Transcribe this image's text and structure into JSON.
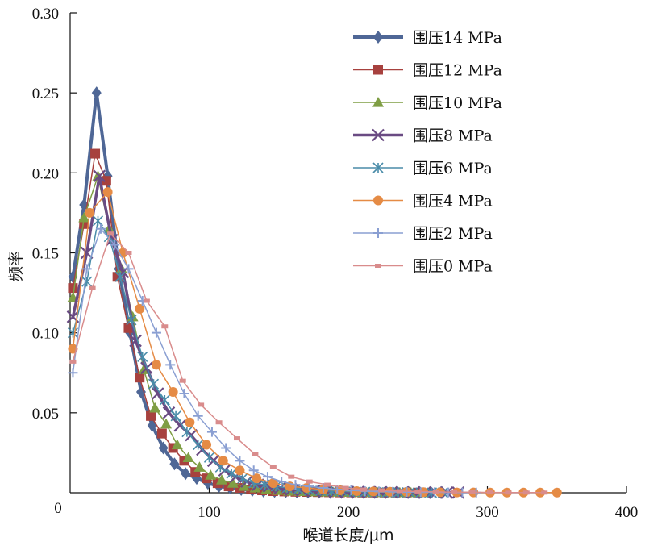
{
  "chart_data": {
    "type": "line",
    "title": "",
    "xlabel": "喉道长度/μm",
    "ylabel": "频率",
    "xlim": [
      0,
      400
    ],
    "ylim": [
      0,
      0.3
    ],
    "x_ticks": [
      100,
      200,
      300,
      400
    ],
    "x_tick_labels": [
      "100",
      "200",
      "300",
      "400"
    ],
    "y_ticks": [
      0.05,
      0.1,
      0.15,
      0.2,
      0.25,
      0.3
    ],
    "y_tick_labels": [
      "0.05",
      "0.10",
      "0.15",
      "0.20",
      "0.25",
      "0.30"
    ],
    "origin_label": "0",
    "grid": false,
    "legend_position": "top-right",
    "series": [
      {
        "name": "围压14 MPa",
        "color": "#4F6796",
        "marker": "diamond",
        "points": [
          [
            2,
            0.135
          ],
          [
            10,
            0.18
          ],
          [
            19,
            0.25
          ],
          [
            27,
            0.198
          ],
          [
            35,
            0.14
          ],
          [
            43,
            0.1
          ],
          [
            51,
            0.063
          ],
          [
            59,
            0.042
          ],
          [
            67,
            0.028
          ],
          [
            75,
            0.018
          ],
          [
            83,
            0.012
          ],
          [
            91,
            0.009
          ],
          [
            99,
            0.006
          ],
          [
            107,
            0.004
          ],
          [
            115,
            0.003
          ],
          [
            123,
            0.002
          ],
          [
            131,
            0.0015
          ],
          [
            139,
            0.001
          ],
          [
            147,
            0.0008
          ],
          [
            155,
            0.0006
          ],
          [
            163,
            0.0005
          ],
          [
            171,
            0.0004
          ],
          [
            179,
            0.0003
          ],
          [
            187,
            0.0002
          ],
          [
            195,
            0.0002
          ],
          [
            203,
            0.0001
          ],
          [
            211,
            0.0001
          ],
          [
            219,
            0.0001
          ],
          [
            227,
            0.0001
          ],
          [
            235,
            0.0001
          ],
          [
            243,
            0.0001
          ],
          [
            251,
            0.0001
          ],
          [
            259,
            0.0001
          ],
          [
            267,
            0.0001
          ]
        ]
      },
      {
        "name": "围压12 MPa",
        "color": "#A7413E",
        "marker": "square",
        "points": [
          [
            2,
            0.128
          ],
          [
            10,
            0.168
          ],
          [
            18,
            0.212
          ],
          [
            26,
            0.195
          ],
          [
            34,
            0.135
          ],
          [
            42,
            0.103
          ],
          [
            50,
            0.072
          ],
          [
            58,
            0.048
          ],
          [
            66,
            0.037
          ],
          [
            74,
            0.028
          ],
          [
            82,
            0.02
          ],
          [
            90,
            0.013
          ],
          [
            98,
            0.009
          ],
          [
            106,
            0.006
          ],
          [
            114,
            0.004
          ],
          [
            122,
            0.003
          ],
          [
            130,
            0.002
          ],
          [
            138,
            0.0015
          ],
          [
            146,
            0.001
          ],
          [
            154,
            0.0008
          ],
          [
            162,
            0.0006
          ],
          [
            170,
            0.0005
          ],
          [
            178,
            0.0004
          ],
          [
            186,
            0.0003
          ],
          [
            194,
            0.0002
          ],
          [
            202,
            0.0002
          ],
          [
            210,
            0.0001
          ],
          [
            218,
            0.0001
          ],
          [
            226,
            0.0001
          ],
          [
            234,
            0.0001
          ],
          [
            242,
            0.0001
          ],
          [
            250,
            0.0001
          ]
        ]
      },
      {
        "name": "围压10 MPa",
        "color": "#7F9E44",
        "marker": "triangle",
        "points": [
          [
            2,
            0.122
          ],
          [
            10,
            0.172
          ],
          [
            20,
            0.198
          ],
          [
            28,
            0.165
          ],
          [
            37,
            0.14
          ],
          [
            45,
            0.11
          ],
          [
            53,
            0.077
          ],
          [
            61,
            0.053
          ],
          [
            69,
            0.043
          ],
          [
            77,
            0.03
          ],
          [
            85,
            0.022
          ],
          [
            93,
            0.016
          ],
          [
            101,
            0.011
          ],
          [
            109,
            0.008
          ],
          [
            117,
            0.006
          ],
          [
            125,
            0.004
          ],
          [
            133,
            0.003
          ],
          [
            141,
            0.002
          ],
          [
            149,
            0.0015
          ],
          [
            157,
            0.001
          ],
          [
            165,
            0.0008
          ],
          [
            173,
            0.0006
          ],
          [
            181,
            0.0005
          ],
          [
            189,
            0.0004
          ],
          [
            197,
            0.0003
          ],
          [
            205,
            0.0002
          ],
          [
            213,
            0.0002
          ],
          [
            221,
            0.0001
          ],
          [
            229,
            0.0001
          ],
          [
            237,
            0.0001
          ],
          [
            245,
            0.0001
          ],
          [
            253,
            0.0001
          ]
        ]
      },
      {
        "name": "围压8 MPa",
        "color": "#6A4B83",
        "marker": "x",
        "points": [
          [
            2,
            0.11
          ],
          [
            12,
            0.15
          ],
          [
            21,
            0.198
          ],
          [
            30,
            0.158
          ],
          [
            38,
            0.138
          ],
          [
            47,
            0.095
          ],
          [
            55,
            0.078
          ],
          [
            63,
            0.062
          ],
          [
            71,
            0.05
          ],
          [
            79,
            0.042
          ],
          [
            87,
            0.036
          ],
          [
            95,
            0.027
          ],
          [
            103,
            0.02
          ],
          [
            111,
            0.014
          ],
          [
            119,
            0.01
          ],
          [
            127,
            0.007
          ],
          [
            135,
            0.005
          ],
          [
            143,
            0.004
          ],
          [
            151,
            0.003
          ],
          [
            159,
            0.002
          ],
          [
            167,
            0.0015
          ],
          [
            175,
            0.0012
          ],
          [
            183,
            0.001
          ],
          [
            191,
            0.0008
          ],
          [
            199,
            0.0006
          ],
          [
            207,
            0.0005
          ],
          [
            215,
            0.0004
          ],
          [
            223,
            0.0003
          ],
          [
            231,
            0.0003
          ],
          [
            239,
            0.0002
          ],
          [
            247,
            0.0002
          ],
          [
            255,
            0.0001
          ],
          [
            263,
            0.0001
          ],
          [
            271,
            0.0001
          ],
          [
            279,
            0.0001
          ]
        ]
      },
      {
        "name": "围压6 MPa",
        "color": "#4A8CA9",
        "marker": "asterisk",
        "points": [
          [
            2,
            0.1
          ],
          [
            12,
            0.132
          ],
          [
            20,
            0.17
          ],
          [
            28,
            0.16
          ],
          [
            36,
            0.135
          ],
          [
            44,
            0.108
          ],
          [
            52,
            0.085
          ],
          [
            60,
            0.068
          ],
          [
            68,
            0.058
          ],
          [
            76,
            0.048
          ],
          [
            84,
            0.038
          ],
          [
            92,
            0.03
          ],
          [
            100,
            0.022
          ],
          [
            108,
            0.016
          ],
          [
            116,
            0.012
          ],
          [
            124,
            0.009
          ],
          [
            132,
            0.006
          ],
          [
            140,
            0.005
          ],
          [
            148,
            0.004
          ],
          [
            156,
            0.003
          ],
          [
            164,
            0.002
          ],
          [
            172,
            0.0015
          ],
          [
            180,
            0.0012
          ],
          [
            188,
            0.001
          ],
          [
            196,
            0.0008
          ],
          [
            204,
            0.0006
          ],
          [
            212,
            0.0005
          ],
          [
            220,
            0.0004
          ],
          [
            228,
            0.0003
          ],
          [
            236,
            0.0002
          ],
          [
            244,
            0.0002
          ],
          [
            252,
            0.0001
          ],
          [
            260,
            0.0001
          ],
          [
            268,
            0.0001
          ]
        ]
      },
      {
        "name": "围压4 MPa",
        "color": "#E58B45",
        "marker": "circle",
        "points": [
          [
            2,
            0.09
          ],
          [
            14,
            0.175
          ],
          [
            27,
            0.188
          ],
          [
            38,
            0.15
          ],
          [
            50,
            0.115
          ],
          [
            62,
            0.08
          ],
          [
            74,
            0.063
          ],
          [
            86,
            0.044
          ],
          [
            98,
            0.03
          ],
          [
            110,
            0.02
          ],
          [
            122,
            0.014
          ],
          [
            134,
            0.009
          ],
          [
            146,
            0.006
          ],
          [
            158,
            0.004
          ],
          [
            170,
            0.003
          ],
          [
            182,
            0.002
          ],
          [
            194,
            0.0015
          ],
          [
            206,
            0.001
          ],
          [
            218,
            0.0008
          ],
          [
            230,
            0.0006
          ],
          [
            242,
            0.0005
          ],
          [
            254,
            0.0004
          ],
          [
            266,
            0.0003
          ],
          [
            278,
            0.0002
          ],
          [
            290,
            0.0002
          ],
          [
            302,
            0.0001
          ],
          [
            314,
            0.0001
          ],
          [
            326,
            0.0001
          ],
          [
            338,
            0.0001
          ],
          [
            350,
            0.0001
          ]
        ]
      },
      {
        "name": "围压2 MPa",
        "color": "#8A9FD2",
        "marker": "plus",
        "points": [
          [
            2,
            0.075
          ],
          [
            12,
            0.14
          ],
          [
            22,
            0.165
          ],
          [
            32,
            0.155
          ],
          [
            42,
            0.14
          ],
          [
            52,
            0.12
          ],
          [
            62,
            0.1
          ],
          [
            72,
            0.08
          ],
          [
            82,
            0.062
          ],
          [
            92,
            0.048
          ],
          [
            102,
            0.038
          ],
          [
            112,
            0.028
          ],
          [
            122,
            0.02
          ],
          [
            132,
            0.014
          ],
          [
            142,
            0.01
          ],
          [
            152,
            0.007
          ],
          [
            162,
            0.005
          ],
          [
            172,
            0.004
          ],
          [
            182,
            0.003
          ],
          [
            192,
            0.002
          ],
          [
            202,
            0.0015
          ],
          [
            212,
            0.001
          ],
          [
            222,
            0.0008
          ],
          [
            232,
            0.0006
          ],
          [
            242,
            0.0005
          ],
          [
            252,
            0.0004
          ],
          [
            262,
            0.0003
          ],
          [
            272,
            0.0002
          ],
          [
            282,
            0.0002
          ],
          [
            292,
            0.0001
          ]
        ]
      },
      {
        "name": "围压0 MPa",
        "color": "#D98C8C",
        "marker": "dash",
        "points": [
          [
            2,
            0.082
          ],
          [
            16,
            0.128
          ],
          [
            29,
            0.162
          ],
          [
            42,
            0.15
          ],
          [
            55,
            0.12
          ],
          [
            68,
            0.104
          ],
          [
            81,
            0.07
          ],
          [
            94,
            0.055
          ],
          [
            107,
            0.044
          ],
          [
            120,
            0.034
          ],
          [
            133,
            0.024
          ],
          [
            146,
            0.016
          ],
          [
            159,
            0.01
          ],
          [
            172,
            0.007
          ],
          [
            185,
            0.005
          ],
          [
            198,
            0.003
          ],
          [
            211,
            0.002
          ],
          [
            224,
            0.0015
          ],
          [
            237,
            0.001
          ],
          [
            250,
            0.0008
          ],
          [
            263,
            0.0006
          ],
          [
            276,
            0.0004
          ],
          [
            289,
            0.0003
          ],
          [
            302,
            0.0002
          ],
          [
            315,
            0.0001
          ],
          [
            328,
            0.0001
          ],
          [
            341,
            0.0001
          ]
        ]
      }
    ]
  }
}
